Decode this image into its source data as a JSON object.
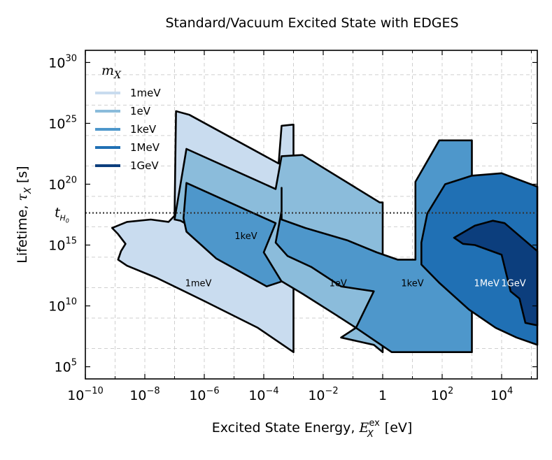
{
  "chart_data": {
    "type": "area",
    "title": "Standard/Vacuum Excited State with EDGES",
    "xlabel": "Excited State Energy, ",
    "xlabel_math": "E",
    "xlabel_sup": "ex",
    "xlabel_sub": "X",
    "xlabel_unit": " [eV]",
    "ylabel": "Lifetime,  ",
    "ylabel_math": "τ",
    "ylabel_sub": "X",
    "ylabel_unit": "   [s]",
    "x_scale": "log",
    "y_scale": "log",
    "xlim_log10": [
      -10,
      5.2
    ],
    "ylim_log10": [
      4,
      31
    ],
    "grid": true,
    "legend_placement": "top-left",
    "legend_title": "m",
    "legend_title_sub": "X",
    "x_ticks": [
      {
        "base": "10",
        "exp": "−10",
        "log": -10
      },
      {
        "base": "10",
        "exp": "−8",
        "log": -8
      },
      {
        "base": "10",
        "exp": "−6",
        "log": -6
      },
      {
        "base": "10",
        "exp": "−4",
        "log": -4
      },
      {
        "base": "10",
        "exp": "−2",
        "log": -2
      },
      {
        "base": "1",
        "exp": "",
        "log": 0
      },
      {
        "base": "10",
        "exp": "2",
        "log": 2
      },
      {
        "base": "10",
        "exp": "4",
        "log": 4
      }
    ],
    "y_ticks": [
      {
        "base": "10",
        "exp": "5",
        "log": 5
      },
      {
        "base": "10",
        "exp": "10",
        "log": 10
      },
      {
        "base": "10",
        "exp": "15",
        "log": 15
      },
      {
        "base": "10",
        "exp": "20",
        "log": 20
      },
      {
        "base": "10",
        "exp": "25",
        "log": 25
      },
      {
        "base": "10",
        "exp": "30",
        "log": 30
      }
    ],
    "reference_line": {
      "label_main": "t",
      "label_sub": "H",
      "label_subsub": "0",
      "y_log10": 17.64,
      "style": "dotted"
    },
    "series": [
      {
        "name": "1meV",
        "color": "#c9dcef",
        "label_color": "#000000",
        "label_at_log": [
          -6.2,
          11.6
        ],
        "boundary_log10": [
          [
            -7.0,
            17.4
          ],
          [
            -6.95,
            26.0
          ],
          [
            -6.5,
            25.7
          ],
          [
            -3.5,
            21.7
          ],
          [
            -3.4,
            24.8
          ],
          [
            -3.0,
            24.9
          ],
          [
            -3.0,
            6.2
          ],
          [
            -4.2,
            8.2
          ],
          [
            -6.0,
            10.4
          ],
          [
            -7.6,
            12.3
          ],
          [
            -8.6,
            13.3
          ],
          [
            -8.9,
            13.8
          ],
          [
            -8.8,
            14.5
          ],
          [
            -8.65,
            15.1
          ],
          [
            -8.9,
            15.9
          ],
          [
            -9.1,
            16.4
          ],
          [
            -8.6,
            16.9
          ],
          [
            -7.8,
            17.1
          ],
          [
            -7.2,
            16.9
          ]
        ]
      },
      {
        "name": "1eV",
        "color": "#8bbcdb",
        "label_color": "#000000",
        "label_at_log": [
          -1.5,
          11.6
        ],
        "boundary_log10": [
          [
            -7.0,
            17.1
          ],
          [
            -6.6,
            22.9
          ],
          [
            -3.6,
            19.6
          ],
          [
            -3.4,
            22.3
          ],
          [
            -2.7,
            22.4
          ],
          [
            -0.1,
            18.5
          ],
          [
            0.0,
            18.5
          ],
          [
            0.0,
            6.2
          ],
          [
            -0.3,
            6.8
          ],
          [
            -1.4,
            7.4
          ],
          [
            -0.9,
            8.2
          ],
          [
            -1.6,
            9.3
          ],
          [
            -2.7,
            11.0
          ],
          [
            -4.0,
            12.9
          ],
          [
            -5.5,
            15.2
          ],
          [
            -6.8,
            17.0
          ]
        ]
      },
      {
        "name": "1keV",
        "color": "#4e97cb",
        "label_color": "#000000",
        "label_at_log": [
          -4.6,
          15.5
        ],
        "boundary_log10": [
          [
            -6.7,
            17.2
          ],
          [
            -6.6,
            20.1
          ],
          [
            -3.6,
            16.8
          ],
          [
            -4.0,
            14.4
          ],
          [
            -3.4,
            12.0
          ],
          [
            -3.9,
            11.6
          ],
          [
            -5.6,
            13.9
          ],
          [
            -6.6,
            16.1
          ]
        ]
      },
      {
        "name": "1keV",
        "color": "#4e97cb",
        "label_color": "#000000",
        "label_at_log": [
          1.0,
          11.6
        ],
        "boundary_log10": [
          [
            -3.4,
            19.7
          ],
          [
            -3.4,
            17.1
          ],
          [
            -2.6,
            16.4
          ],
          [
            -1.2,
            15.4
          ],
          [
            -0.2,
            14.4
          ],
          [
            0.5,
            13.8
          ],
          [
            1.1,
            13.8
          ],
          [
            1.1,
            20.2
          ],
          [
            1.9,
            23.6
          ],
          [
            3.0,
            23.6
          ],
          [
            3.0,
            6.2
          ],
          [
            1.3,
            6.2
          ],
          [
            0.3,
            6.2
          ],
          [
            -0.9,
            8.2
          ],
          [
            -0.3,
            11.2
          ],
          [
            -1.4,
            11.6
          ],
          [
            -2.4,
            13.2
          ],
          [
            -3.2,
            14.1
          ],
          [
            -3.6,
            15.2
          ],
          [
            -3.4,
            17.8
          ]
        ]
      },
      {
        "name": "1MeV",
        "color": "#2070b4",
        "label_color": "#ffffff",
        "label_at_log": [
          3.5,
          11.6
        ],
        "boundary_log10": [
          [
            1.3,
            15.2
          ],
          [
            1.5,
            17.6
          ],
          [
            2.1,
            20.0
          ],
          [
            3.0,
            20.7
          ],
          [
            4.0,
            20.9
          ],
          [
            5.2,
            19.8
          ],
          [
            5.2,
            6.8
          ],
          [
            4.5,
            7.4
          ],
          [
            3.8,
            8.2
          ],
          [
            2.9,
            9.7
          ],
          [
            1.9,
            11.9
          ],
          [
            1.3,
            13.4
          ]
        ]
      },
      {
        "name": "1GeV",
        "color": "#0c3e7d",
        "label_color": "#ffffff",
        "label_at_log": [
          4.4,
          11.6
        ],
        "boundary_log10": [
          [
            2.4,
            15.6
          ],
          [
            3.1,
            16.6
          ],
          [
            3.7,
            17.0
          ],
          [
            4.1,
            16.8
          ],
          [
            5.2,
            14.5
          ],
          [
            5.2,
            8.4
          ],
          [
            4.8,
            8.6
          ],
          [
            4.6,
            10.6
          ],
          [
            4.3,
            11.2
          ],
          [
            4.0,
            14.2
          ],
          [
            3.1,
            15.0
          ],
          [
            2.7,
            15.1
          ]
        ]
      }
    ],
    "legend": [
      {
        "name": "1meV",
        "color": "#c9dcef"
      },
      {
        "name": "1eV",
        "color": "#8bbcdb"
      },
      {
        "name": "1keV",
        "color": "#4e97cb"
      },
      {
        "name": "1MeV",
        "color": "#2070b4"
      },
      {
        "name": "1GeV",
        "color": "#0c3e7d"
      }
    ]
  }
}
